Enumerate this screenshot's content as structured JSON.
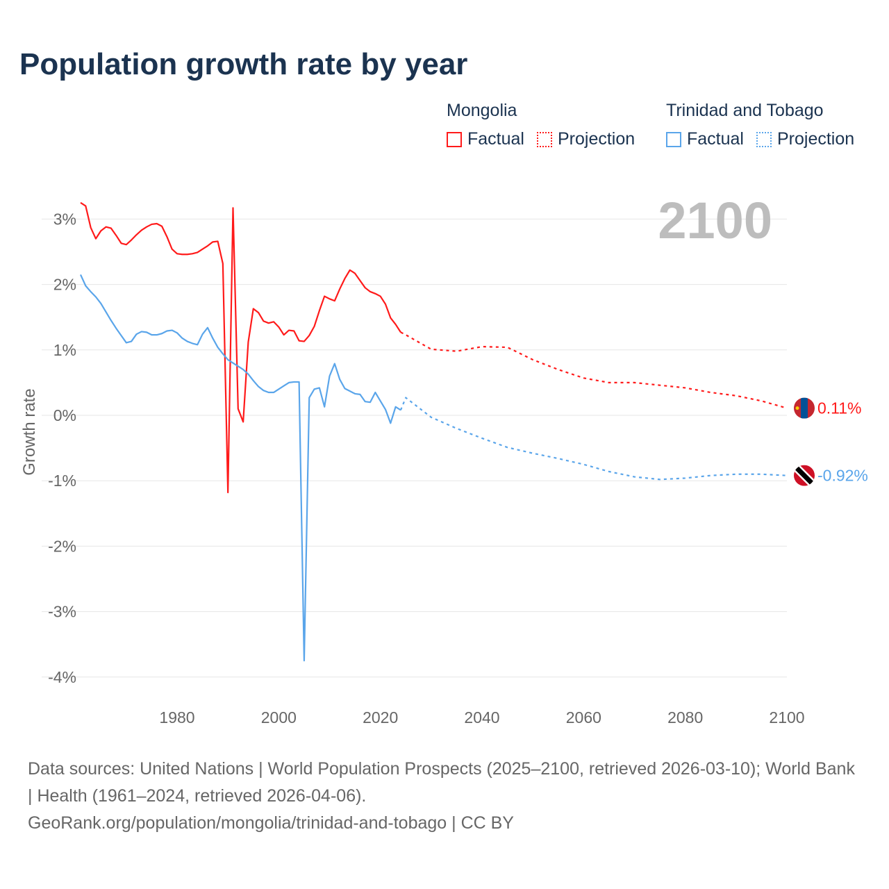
{
  "title": "Population growth rate by year",
  "legend": {
    "groups": [
      {
        "name": "Mongolia",
        "factual": "Factual",
        "projection": "Projection",
        "color": "#ff1a1a"
      },
      {
        "name": "Trinidad and Tobago",
        "factual": "Factual",
        "projection": "Projection",
        "color": "#5aa5ea"
      }
    ]
  },
  "year_label": "2100",
  "end_labels": {
    "mongolia": "0.11%",
    "tt": "-0.92%"
  },
  "footer": {
    "sources": "Data sources: United Nations | World Population Prospects (2025–2100, retrieved 2026-03-10); World Bank | Health (1961–2024, retrieved 2026-04-06).",
    "link": "GeoRank.org/population/mongolia/trinidad-and-tobago | CC BY"
  },
  "chart_data": {
    "type": "line",
    "title": "Population growth rate by year",
    "xlabel": "",
    "ylabel": "Growth rate",
    "xlim": [
      1961,
      2100
    ],
    "ylim": [
      -4,
      3.4
    ],
    "xticks": [
      1980,
      2000,
      2020,
      2040,
      2060,
      2080,
      2100
    ],
    "xtick_labels": [
      "1980",
      "2000",
      "2020",
      "2040",
      "2060",
      "2080",
      "2100"
    ],
    "yticks": [
      3,
      2,
      1,
      0,
      -1,
      -2,
      -3,
      -4
    ],
    "ytick_labels": [
      "3%",
      "2%",
      "1%",
      "0%",
      "-1%",
      "-2%",
      "-3%",
      "-4%"
    ],
    "grid": true,
    "legend_position": "top-right",
    "factual_years_start": 1961,
    "projection_years": [
      2025,
      2030,
      2035,
      2040,
      2045,
      2050,
      2055,
      2060,
      2065,
      2070,
      2075,
      2080,
      2085,
      2090,
      2095,
      2100
    ],
    "series": [
      {
        "name": "Mongolia",
        "kind": "factual",
        "color": "#ff1a1a",
        "values": [
          3.25,
          3.2,
          2.87,
          2.7,
          2.82,
          2.88,
          2.86,
          2.75,
          2.63,
          2.61,
          2.68,
          2.76,
          2.83,
          2.88,
          2.92,
          2.93,
          2.89,
          2.73,
          2.54,
          2.47,
          2.46,
          2.46,
          2.47,
          2.49,
          2.54,
          2.59,
          2.65,
          2.66,
          2.32,
          -1.18,
          3.17,
          0.1,
          -0.1,
          1.12,
          1.63,
          1.57,
          1.44,
          1.41,
          1.43,
          1.35,
          1.23,
          1.3,
          1.29,
          1.14,
          1.13,
          1.22,
          1.36,
          1.6,
          1.82,
          1.78,
          1.75,
          1.93,
          2.09,
          2.22,
          2.17,
          2.06,
          1.95,
          1.89,
          1.86,
          1.82,
          1.7,
          1.49,
          1.39,
          1.27
        ]
      },
      {
        "name": "Mongolia",
        "kind": "projection",
        "color": "#ff1a1a",
        "values": [
          1.23,
          1.01,
          0.98,
          1.05,
          1.04,
          0.85,
          0.7,
          0.57,
          0.5,
          0.5,
          0.46,
          0.42,
          0.35,
          0.3,
          0.22,
          0.11
        ]
      },
      {
        "name": "Trinidad and Tobago",
        "kind": "factual",
        "color": "#5aa5ea",
        "values": [
          2.15,
          1.98,
          1.89,
          1.81,
          1.71,
          1.58,
          1.45,
          1.33,
          1.22,
          1.11,
          1.13,
          1.24,
          1.28,
          1.27,
          1.23,
          1.23,
          1.25,
          1.29,
          1.3,
          1.26,
          1.18,
          1.13,
          1.1,
          1.08,
          1.24,
          1.34,
          1.18,
          1.04,
          0.94,
          0.85,
          0.8,
          0.75,
          0.7,
          0.63,
          0.53,
          0.44,
          0.38,
          0.35,
          0.35,
          0.4,
          0.45,
          0.5,
          0.51,
          0.51,
          -3.75,
          0.27,
          0.4,
          0.42,
          0.13,
          0.6,
          0.79,
          0.55,
          0.41,
          0.37,
          0.33,
          0.32,
          0.21,
          0.2,
          0.35,
          0.22,
          0.09,
          -0.12,
          0.13,
          0.08
        ]
      },
      {
        "name": "Trinidad and Tobago",
        "kind": "projection",
        "color": "#5aa5ea",
        "values": [
          0.27,
          -0.03,
          -0.2,
          -0.35,
          -0.49,
          -0.58,
          -0.66,
          -0.75,
          -0.86,
          -0.94,
          -0.98,
          -0.96,
          -0.92,
          -0.9,
          -0.9,
          -0.92
        ]
      }
    ]
  }
}
